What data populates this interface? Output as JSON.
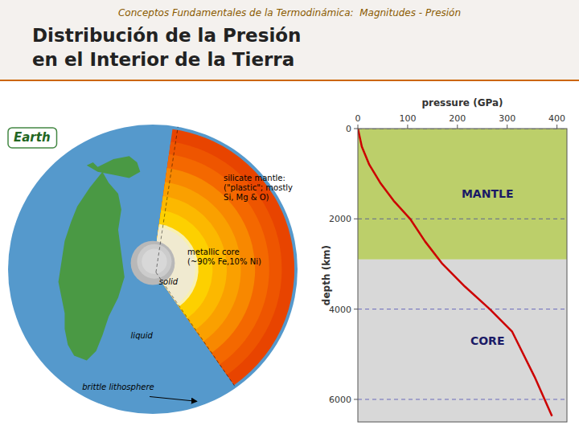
{
  "chart_data": {
    "type": "line",
    "title": [
      "Distribución de la Presión",
      "en el Interior de la Tierra"
    ],
    "subtitle": "Conceptos Fundamentales de la Termodinámica:  Magnitudes - Presión",
    "x_label": "pressure (GPa)",
    "y_label": "depth (km)",
    "x": [
      0,
      8,
      23,
      45,
      72,
      105,
      135,
      170,
      215,
      265,
      310,
      355,
      390
    ],
    "series": [
      {
        "color": "#cc0000",
        "values": [
          0,
          400,
          800,
          1200,
          1600,
          2000,
          2500,
          3000,
          3500,
          4000,
          4500,
          5500,
          6371
        ]
      }
    ],
    "xlim": [
      0,
      420
    ],
    "ylim": [
      6500,
      0
    ],
    "xticks": [
      0,
      100,
      200,
      300,
      400
    ],
    "yticks": [
      0,
      2000,
      4000,
      6000
    ],
    "grid": "y",
    "regions": [
      {
        "name": "MANTLE",
        "from": 0,
        "to": 2900,
        "color": "#bccf6a"
      },
      {
        "name": "CORE",
        "from": 2900,
        "to": 6500,
        "color": "#d8d8d8"
      }
    ],
    "annotations": [
      "silicate mantle:\n(\"plastic\"; mostly\nSi, Mg & O)",
      "metallic core\n(~90% Fe,10% Ni)",
      "solid",
      "liquid",
      "brittle lithosphere",
      "Earth"
    ]
  }
}
